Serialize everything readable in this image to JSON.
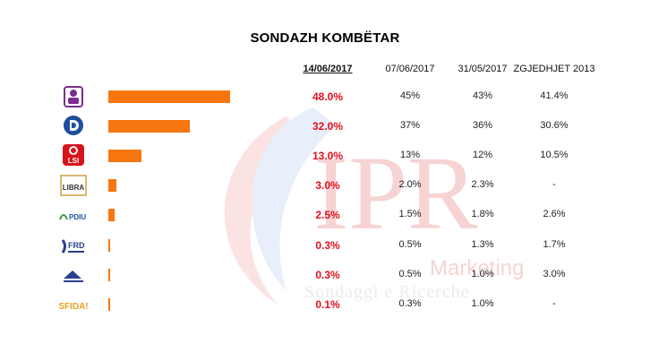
{
  "title": "SONDAZH KOMBËTAR",
  "watermark": {
    "big": "IPR",
    "line1": "Marketing",
    "line2": "Sondaggi e Ricerche"
  },
  "colors": {
    "bar": "#f7760f",
    "highlight": "#e0101c"
  },
  "chart_data": {
    "type": "bar",
    "orientation": "horizontal",
    "columns": [
      "14/06/2017",
      "07/06/2017",
      "31/05/2017",
      "ZGJEDHJET 2013"
    ],
    "categories": [
      "PS",
      "PD",
      "LSI",
      "LIBRA",
      "PDIU",
      "FRD",
      "PSD",
      "SFIDA!"
    ],
    "category_labels": [
      "",
      "",
      "LSI",
      "LIBRA",
      "PDIU",
      "FRD",
      "",
      "SFIDA!"
    ],
    "category_icons": [
      "ps-logo",
      "pd-logo",
      "lsi-logo",
      "libra-logo",
      "pdiu-logo",
      "frd-logo",
      "psd-logo",
      "sfida-logo"
    ],
    "values": [
      48.0,
      32.0,
      13.0,
      3.0,
      2.5,
      0.3,
      0.3,
      0.1
    ],
    "table": {
      "14/06/2017": [
        "48.0%",
        "32.0%",
        "13.0%",
        "3.0%",
        "2.5%",
        "0.3%",
        "0.3%",
        "0.1%"
      ],
      "07/06/2017": [
        "45%",
        "37%",
        "13%",
        "2.0%",
        "1.5%",
        "0.5%",
        "0.5%",
        "0.3%"
      ],
      "31/05/2017": [
        "43%",
        "36%",
        "12%",
        "2.3%",
        "1.8%",
        "1.3%",
        "1.0%",
        "1.0%"
      ],
      "ZGJEDHJET 2013": [
        "41.4%",
        "30.6%",
        "10.5%",
        "-",
        "2.6%",
        "1.7%",
        "3.0%",
        "-"
      ]
    },
    "xlim": [
      0,
      100
    ]
  }
}
